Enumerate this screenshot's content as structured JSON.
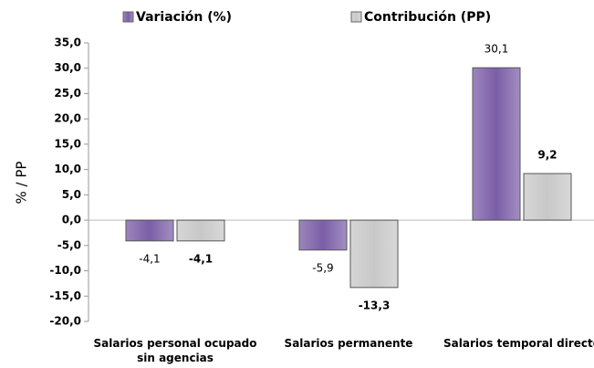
{
  "chart_data": {
    "type": "bar",
    "y_label": "% / PP",
    "categories": [
      "Salarios personal ocupado sin agencias",
      "Salarios permanente",
      "Salarios temporal directo"
    ],
    "series": [
      {
        "name": "Variación (%)",
        "color": "#7b5ea7",
        "values": [
          -4.1,
          -5.9,
          30.1
        ],
        "value_labels": [
          "-4,1",
          "-5,9",
          "30,1"
        ]
      },
      {
        "name": "Contribución (PP)",
        "color": "#c8c8c8",
        "values": [
          -4.1,
          -13.3,
          9.2
        ],
        "value_labels": [
          "-4,1",
          "-13,3",
          "9,2"
        ]
      }
    ],
    "ylim": [
      -20,
      35
    ],
    "yticks": [
      {
        "value": -20,
        "label": "-20,0"
      },
      {
        "value": -15,
        "label": "-15,0"
      },
      {
        "value": -10,
        "label": "-10,0"
      },
      {
        "value": -5,
        "label": "-5,0"
      },
      {
        "value": 0,
        "label": "0,0"
      },
      {
        "value": 5,
        "label": "5,0"
      },
      {
        "value": 10,
        "label": "10,0"
      },
      {
        "value": 15,
        "label": "15,0"
      },
      {
        "value": 20,
        "label": "20,0"
      },
      {
        "value": 25,
        "label": "25,0"
      },
      {
        "value": 30,
        "label": "30,0"
      },
      {
        "value": 35,
        "label": "35,0"
      }
    ]
  }
}
